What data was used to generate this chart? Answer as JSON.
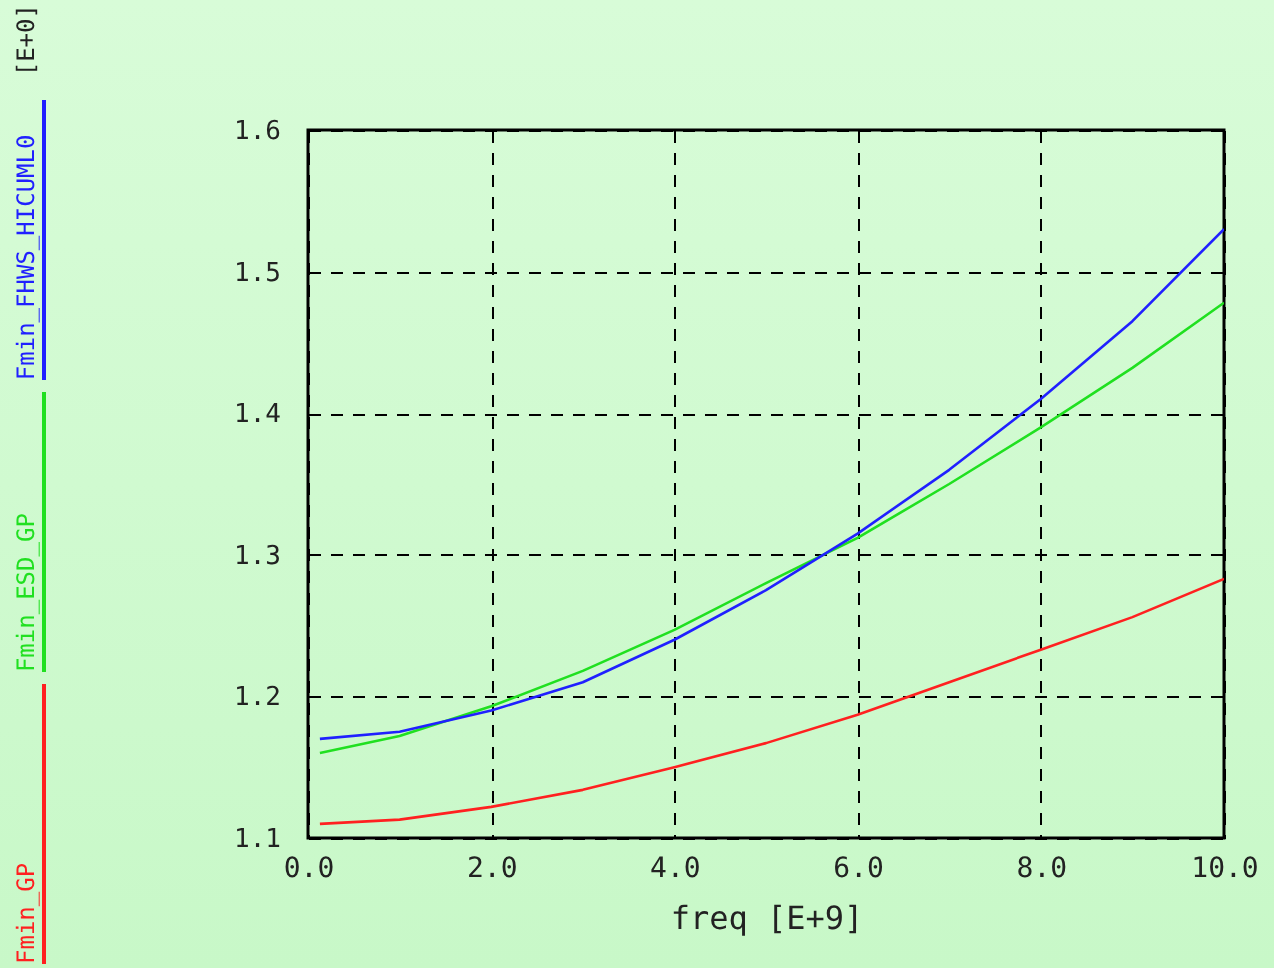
{
  "chart_data": {
    "type": "line",
    "xlabel": "freq    [E+9]",
    "annotations": [
      "[E+0]"
    ],
    "x": [
      0.13,
      1,
      2,
      3,
      4,
      5,
      6,
      7,
      8,
      9,
      10
    ],
    "series": [
      {
        "name": "Fmin_GP",
        "color": "#ff2020",
        "values": [
          1.11,
          1.113,
          1.122,
          1.134,
          1.15,
          1.167,
          1.187,
          1.21,
          1.233,
          1.256,
          1.283
        ]
      },
      {
        "name": "Fmin_ESD_GP",
        "color": "#20e020",
        "values": [
          1.16,
          1.172,
          1.193,
          1.218,
          1.247,
          1.28,
          1.312,
          1.35,
          1.39,
          1.432,
          1.478
        ]
      },
      {
        "name": "Fmin_FHWS_HICUML0",
        "color": "#2020ff",
        "values": [
          1.17,
          1.175,
          1.19,
          1.21,
          1.24,
          1.275,
          1.315,
          1.36,
          1.41,
          1.465,
          1.53
        ]
      }
    ],
    "xlim": [
      0,
      10
    ],
    "xticks": [
      {
        "value": 0,
        "label": "0.0"
      },
      {
        "value": 2,
        "label": "2.0"
      },
      {
        "value": 4,
        "label": "4.0"
      },
      {
        "value": 6,
        "label": "6.0"
      },
      {
        "value": 8,
        "label": "8.0"
      },
      {
        "value": 10,
        "label": "10.0"
      }
    ],
    "ylim": [
      1.1,
      1.6
    ],
    "yticks": [
      1.1,
      1.2,
      1.3,
      1.4,
      1.5,
      1.6
    ],
    "grid": true,
    "legend": "left",
    "line_style": "solid",
    "marker": "none"
  }
}
